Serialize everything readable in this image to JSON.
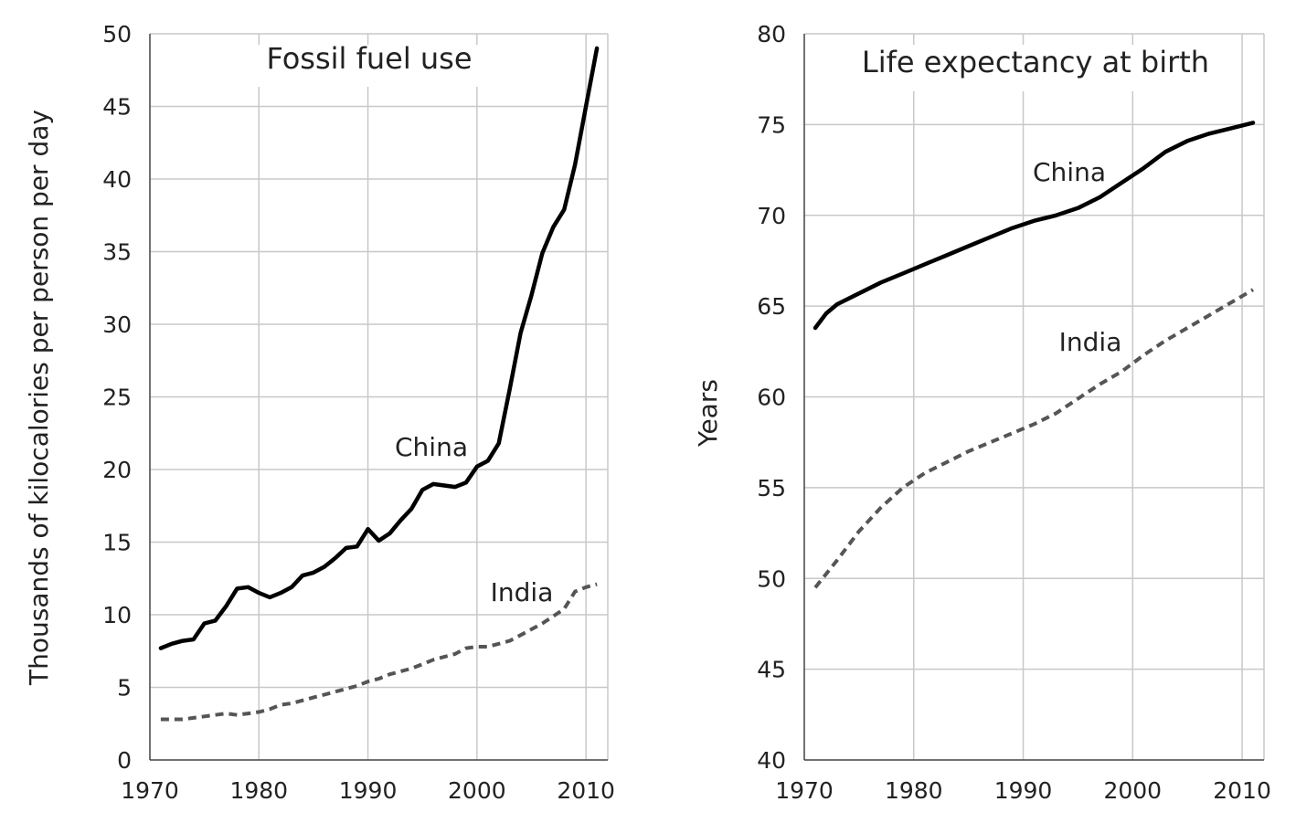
{
  "chart_data": [
    {
      "type": "line",
      "title": "Fossil fuel use",
      "xlabel": "",
      "ylabel": "Thousands of kilocalories per person per day",
      "xlim": [
        1970,
        2012
      ],
      "ylim": [
        0,
        50
      ],
      "xticks": [
        1970,
        1980,
        1990,
        2000,
        2010
      ],
      "yticks": [
        0,
        5,
        10,
        15,
        20,
        25,
        30,
        35,
        40,
        45,
        50
      ],
      "grid": true,
      "legend": "none",
      "series": [
        {
          "name": "China",
          "style": "solid",
          "color": "#000000",
          "x": [
            1971,
            1972,
            1973,
            1974,
            1975,
            1976,
            1977,
            1978,
            1979,
            1980,
            1981,
            1982,
            1983,
            1984,
            1985,
            1986,
            1987,
            1988,
            1989,
            1990,
            1991,
            1992,
            1993,
            1994,
            1995,
            1996,
            1997,
            1998,
            1999,
            2000,
            2001,
            2002,
            2003,
            2004,
            2005,
            2006,
            2007,
            2008,
            2009,
            2010,
            2011
          ],
          "y": [
            7.7,
            8.0,
            8.2,
            8.3,
            9.4,
            9.6,
            10.6,
            11.8,
            11.9,
            11.5,
            11.2,
            11.5,
            11.9,
            12.7,
            12.9,
            13.3,
            13.9,
            14.6,
            14.7,
            15.9,
            15.1,
            15.6,
            16.5,
            17.3,
            18.6,
            19.0,
            18.9,
            18.8,
            19.1,
            20.2,
            20.6,
            21.8,
            25.5,
            29.4,
            32.0,
            34.9,
            36.7,
            37.9,
            41.0,
            45.0,
            49.0
          ]
        },
        {
          "name": "India",
          "style": "dashed",
          "color": "#555555",
          "x": [
            1971,
            1972,
            1973,
            1974,
            1975,
            1976,
            1977,
            1978,
            1979,
            1980,
            1981,
            1982,
            1983,
            1984,
            1985,
            1986,
            1987,
            1988,
            1989,
            1990,
            1991,
            1992,
            1993,
            1994,
            1995,
            1996,
            1997,
            1998,
            1999,
            2000,
            2001,
            2002,
            2003,
            2004,
            2005,
            2006,
            2007,
            2008,
            2009,
            2010,
            2011
          ],
          "y": [
            2.8,
            2.8,
            2.8,
            2.9,
            3.0,
            3.1,
            3.2,
            3.1,
            3.2,
            3.3,
            3.5,
            3.8,
            3.9,
            4.1,
            4.3,
            4.5,
            4.7,
            4.9,
            5.1,
            5.4,
            5.6,
            5.9,
            6.1,
            6.3,
            6.6,
            6.9,
            7.1,
            7.3,
            7.7,
            7.8,
            7.8,
            8.0,
            8.2,
            8.6,
            9.0,
            9.4,
            9.9,
            10.4,
            11.6,
            11.9,
            12.1
          ]
        }
      ]
    },
    {
      "type": "line",
      "title": "Life expectancy at birth",
      "xlabel": "",
      "ylabel": "Years",
      "xlim": [
        1970,
        2012
      ],
      "ylim": [
        40,
        80
      ],
      "xticks": [
        1970,
        1980,
        1990,
        2000,
        2010
      ],
      "yticks": [
        40,
        45,
        50,
        55,
        60,
        65,
        70,
        75,
        80
      ],
      "grid": true,
      "legend": "none",
      "series": [
        {
          "name": "China",
          "style": "solid",
          "color": "#000000",
          "x": [
            1971,
            1972,
            1973,
            1975,
            1977,
            1979,
            1981,
            1983,
            1985,
            1987,
            1989,
            1991,
            1993,
            1995,
            1997,
            1999,
            2001,
            2003,
            2005,
            2007,
            2009,
            2011
          ],
          "y": [
            63.8,
            64.6,
            65.1,
            65.7,
            66.3,
            66.8,
            67.3,
            67.8,
            68.3,
            68.8,
            69.3,
            69.7,
            70.0,
            70.4,
            71.0,
            71.8,
            72.6,
            73.5,
            74.1,
            74.5,
            74.8,
            75.1
          ]
        },
        {
          "name": "India",
          "style": "dashed",
          "color": "#555555",
          "x": [
            1971,
            1973,
            1975,
            1977,
            1979,
            1981,
            1983,
            1985,
            1987,
            1989,
            1991,
            1993,
            1995,
            1997,
            1999,
            2001,
            2003,
            2005,
            2007,
            2009,
            2011
          ],
          "y": [
            49.5,
            51.0,
            52.6,
            53.9,
            55.0,
            55.8,
            56.4,
            57.0,
            57.5,
            58.0,
            58.5,
            59.1,
            59.9,
            60.7,
            61.4,
            62.3,
            63.1,
            63.8,
            64.5,
            65.2,
            65.9
          ]
        }
      ]
    }
  ]
}
